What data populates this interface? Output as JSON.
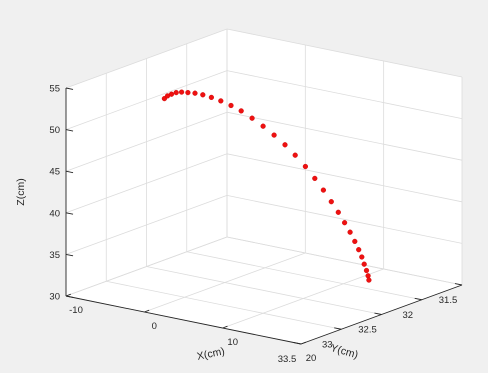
{
  "chart_data": {
    "type": "scatter",
    "projection": "3d",
    "title": "",
    "xlabel": "X(cm)",
    "ylabel": "Y(cm)",
    "zlabel": "Z(cm)",
    "xlim": [
      -10,
      20
    ],
    "ylim": [
      31.5,
      33.5
    ],
    "zlim": [
      30,
      55
    ],
    "x_ticks": [
      "-10",
      "0",
      "10",
      "20"
    ],
    "y_ticks": [
      "31.5",
      "32",
      "32.5",
      "33",
      "33.5"
    ],
    "z_ticks": [
      "30",
      "35",
      "40",
      "45",
      "50",
      "55"
    ],
    "grid": true,
    "marker_color": "#ee1111",
    "background_color": "#f0f0f0",
    "plot_background": "#ffffff",
    "series": [
      {
        "x": [
          -7.2,
          -6.8,
          -6.3,
          -5.7,
          -5.0,
          -4.2,
          -3.3,
          -2.3,
          -1.2,
          0.0,
          1.3,
          2.6,
          4.0,
          5.4,
          6.8,
          8.2,
          9.5,
          10.8,
          12.0,
          13.1,
          14.1,
          15.0,
          15.8,
          16.5,
          17.1,
          17.6,
          18.0,
          18.3,
          18.6,
          18.8,
          18.9
        ],
        "y": [
          32.55,
          32.55,
          32.55,
          32.55,
          32.55,
          32.55,
          32.55,
          32.55,
          32.55,
          32.55,
          32.55,
          32.55,
          32.55,
          32.55,
          32.55,
          32.55,
          32.55,
          32.55,
          32.55,
          32.55,
          32.55,
          32.55,
          32.55,
          32.55,
          32.55,
          32.55,
          32.55,
          32.55,
          32.55,
          32.55,
          32.55
        ],
        "z": [
          50.9,
          51.3,
          51.6,
          51.9,
          52.1,
          52.2,
          52.3,
          52.3,
          52.2,
          52.0,
          51.7,
          51.3,
          50.7,
          50.0,
          49.2,
          48.3,
          47.3,
          46.2,
          45.0,
          43.8,
          42.6,
          41.5,
          40.4,
          39.4,
          38.4,
          37.5,
          36.7,
          35.9,
          35.2,
          34.6,
          34.1
        ]
      }
    ]
  }
}
